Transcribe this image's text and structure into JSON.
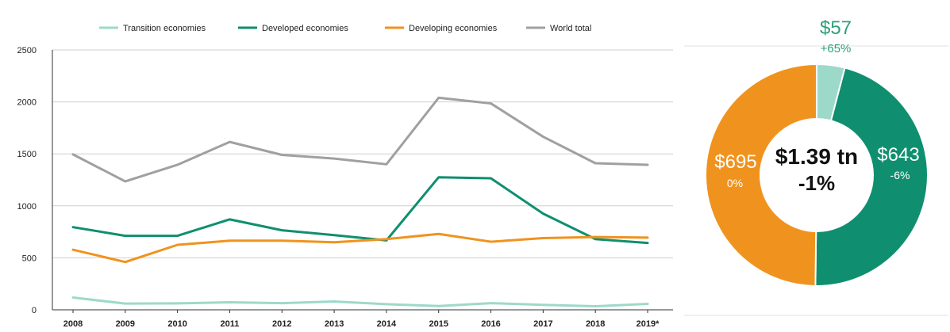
{
  "chart_data": [
    {
      "type": "line",
      "categories": [
        "2008",
        "2009",
        "2010",
        "2011",
        "2012",
        "2013",
        "2014",
        "2015",
        "2016",
        "2017",
        "2018",
        "2019*"
      ],
      "ylim": [
        0,
        2500
      ],
      "yticks": [
        "0",
        "500",
        "1000",
        "1500",
        "2000",
        "2500"
      ],
      "grid": true,
      "legend_position": "top",
      "series": [
        {
          "name": "Transition economies",
          "color": "#9dd9c9",
          "values": [
            118,
            60,
            62,
            72,
            64,
            80,
            54,
            36,
            64,
            48,
            34,
            57
          ]
        },
        {
          "name": "Developed economies",
          "color": "#0f8f6f",
          "values": [
            795,
            712,
            712,
            870,
            765,
            718,
            668,
            1275,
            1265,
            925,
            680,
            643
          ]
        },
        {
          "name": "Developing economies",
          "color": "#f0931e",
          "values": [
            578,
            460,
            625,
            665,
            665,
            650,
            680,
            730,
            655,
            690,
            700,
            695
          ]
        },
        {
          "name": "World total",
          "color": "#a0a0a0",
          "values": [
            1495,
            1235,
            1395,
            1615,
            1490,
            1455,
            1400,
            2040,
            1985,
            1665,
            1410,
            1395
          ]
        }
      ]
    },
    {
      "type": "pie",
      "slices": [
        {
          "label": "$57",
          "change": "+65%",
          "value": 57,
          "color": "#9dd9c9"
        },
        {
          "label": "$643",
          "change": "-6%",
          "value": 643,
          "color": "#0f8f6f"
        },
        {
          "label": "$695",
          "change": "0%",
          "value": 695,
          "color": "#f0931e"
        }
      ],
      "center_total": "$1.39 tn",
      "center_change": "-1%"
    }
  ],
  "colors": {
    "grid": "#cfcfcf",
    "axis": "#333333",
    "small_label": "#2f9e7c"
  }
}
